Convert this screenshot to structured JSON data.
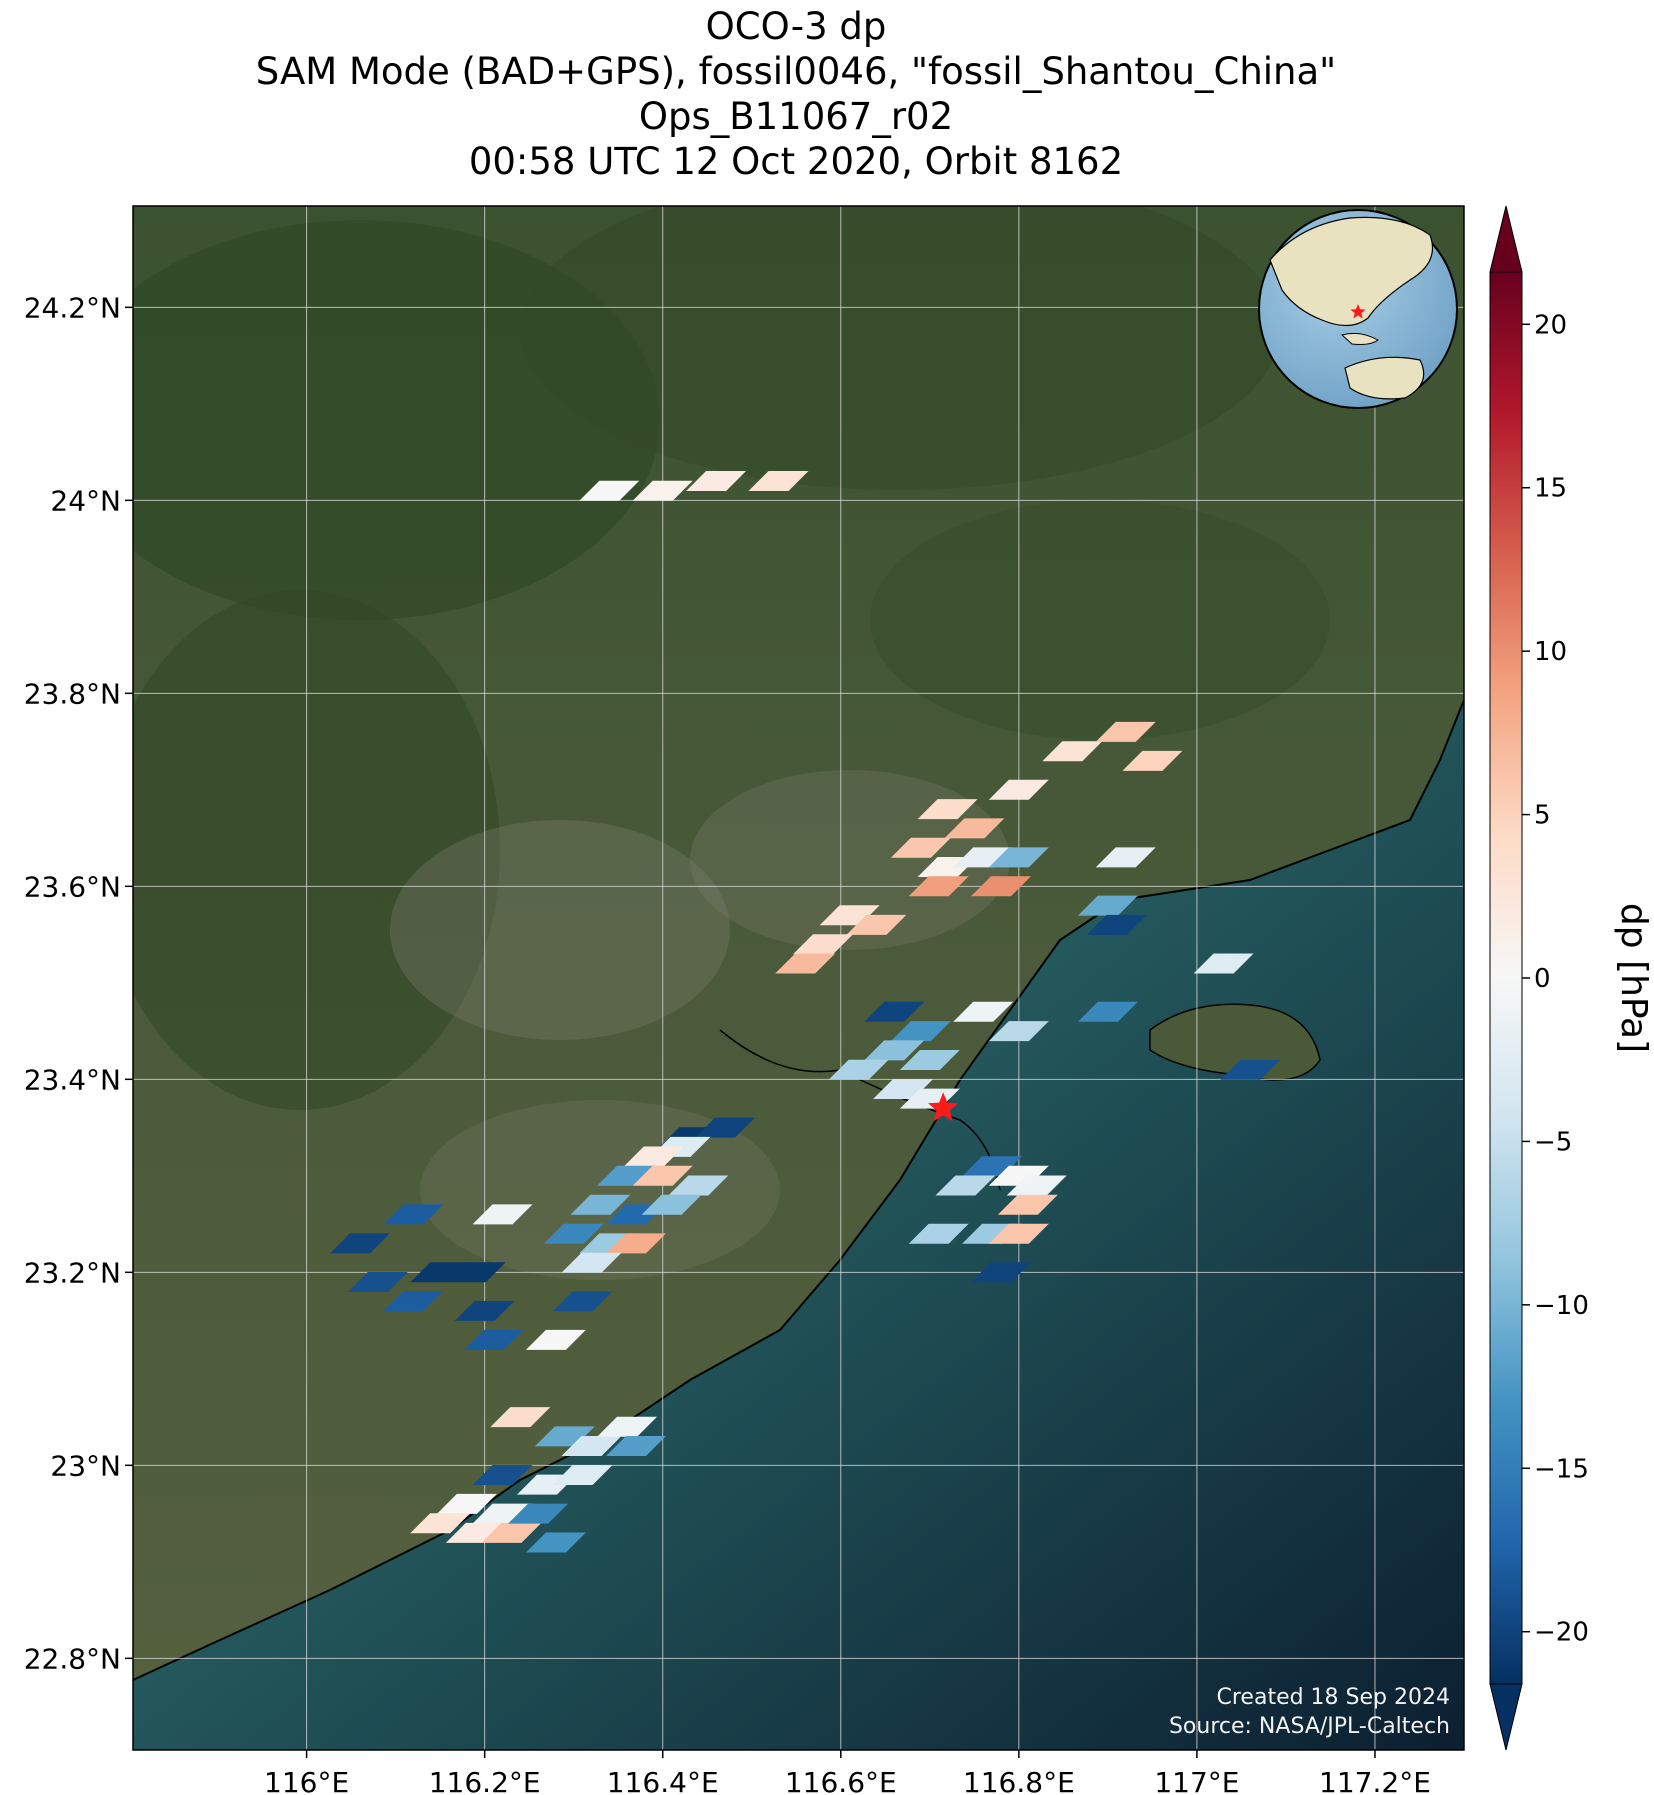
{
  "title_lines": [
    "OCO-3 dp",
    "SAM Mode (BAD+GPS), fossil0046, \"fossil_Shantou_China\"",
    "Ops_B11067_r02",
    "00:58 UTC 12 Oct 2020, Orbit 8162"
  ],
  "map": {
    "lon_range": [
      115.805,
      117.3
    ],
    "lat_range": [
      22.705,
      24.305
    ],
    "lat_ticks": [
      {
        "value": 24.2,
        "label": "24.2°N"
      },
      {
        "value": 24.0,
        "label": "24°N"
      },
      {
        "value": 23.8,
        "label": "23.8°N"
      },
      {
        "value": 23.6,
        "label": "23.6°N"
      },
      {
        "value": 23.4,
        "label": "23.4°N"
      },
      {
        "value": 23.2,
        "label": "23.2°N"
      },
      {
        "value": 23.0,
        "label": "23°N"
      },
      {
        "value": 22.8,
        "label": "22.8°N"
      }
    ],
    "lon_ticks": [
      {
        "value": 116.0,
        "label": "116°E"
      },
      {
        "value": 116.2,
        "label": "116.2°E"
      },
      {
        "value": 116.4,
        "label": "116.4°E"
      },
      {
        "value": 116.6,
        "label": "116.6°E"
      },
      {
        "value": 116.8,
        "label": "116.8°E"
      },
      {
        "value": 117.0,
        "label": "117°E"
      },
      {
        "value": 117.2,
        "label": "117.2°E"
      }
    ],
    "gridlines": true,
    "target": {
      "name": "fossil_Shantou_China",
      "lon": 116.715,
      "lat": 23.37,
      "marker": "red-star"
    },
    "inset_globe": {
      "position": "top-right",
      "marker": "red-star"
    },
    "credits": [
      "Created 18 Sep 2024",
      "Source: NASA/JPL-Caltech"
    ],
    "colors": {
      "land": "#3f5430",
      "sea_near": "#2f6b63",
      "sea_far": "#0e2233",
      "grid": "#d9d9d9",
      "coastline": "#000000",
      "star": "#ff1a1a"
    }
  },
  "colorbar": {
    "label": "dp [hPa]",
    "vmin": -21.6,
    "vmax": 21.6,
    "extend": "both",
    "colormap": "RdBu_r",
    "ticks": [
      -20,
      -15,
      -10,
      -5,
      0,
      5,
      10,
      15,
      20
    ],
    "tick_labels": [
      "−20",
      "−15",
      "−10",
      "−5",
      "0",
      "5",
      "10",
      "15",
      "20"
    ]
  },
  "chart_data": {
    "type": "scatter",
    "description": "OCO-3 SAM footprints, colour = dp in hPa",
    "points": [
      {
        "lon": 116.46,
        "lat": 24.02,
        "dp": 2
      },
      {
        "lon": 116.4,
        "lat": 24.01,
        "dp": 1
      },
      {
        "lon": 116.34,
        "lat": 24.01,
        "dp": 0
      },
      {
        "lon": 116.53,
        "lat": 24.02,
        "dp": 3
      },
      {
        "lon": 116.86,
        "lat": 23.74,
        "dp": 3
      },
      {
        "lon": 116.92,
        "lat": 23.76,
        "dp": 6
      },
      {
        "lon": 116.8,
        "lat": 23.7,
        "dp": 2
      },
      {
        "lon": 116.72,
        "lat": 23.68,
        "dp": 4
      },
      {
        "lon": 116.75,
        "lat": 23.66,
        "dp": 7
      },
      {
        "lon": 116.69,
        "lat": 23.64,
        "dp": 6
      },
      {
        "lon": 116.72,
        "lat": 23.62,
        "dp": 1
      },
      {
        "lon": 116.76,
        "lat": 23.63,
        "dp": -2
      },
      {
        "lon": 116.8,
        "lat": 23.63,
        "dp": -10
      },
      {
        "lon": 116.71,
        "lat": 23.6,
        "dp": 9
      },
      {
        "lon": 116.78,
        "lat": 23.6,
        "dp": 10
      },
      {
        "lon": 116.61,
        "lat": 23.57,
        "dp": 3
      },
      {
        "lon": 116.64,
        "lat": 23.56,
        "dp": 6
      },
      {
        "lon": 116.58,
        "lat": 23.54,
        "dp": 4
      },
      {
        "lon": 116.56,
        "lat": 23.52,
        "dp": 7
      },
      {
        "lon": 116.92,
        "lat": 23.63,
        "dp": -2
      },
      {
        "lon": 116.9,
        "lat": 23.58,
        "dp": -11
      },
      {
        "lon": 116.91,
        "lat": 23.56,
        "dp": -20
      },
      {
        "lon": 116.95,
        "lat": 23.73,
        "dp": 5
      },
      {
        "lon": 117.03,
        "lat": 23.52,
        "dp": -3
      },
      {
        "lon": 116.66,
        "lat": 23.47,
        "dp": -20
      },
      {
        "lon": 116.69,
        "lat": 23.45,
        "dp": -13
      },
      {
        "lon": 116.66,
        "lat": 23.43,
        "dp": -9
      },
      {
        "lon": 116.7,
        "lat": 23.42,
        "dp": -8
      },
      {
        "lon": 116.76,
        "lat": 23.47,
        "dp": -1
      },
      {
        "lon": 116.8,
        "lat": 23.45,
        "dp": -6
      },
      {
        "lon": 116.9,
        "lat": 23.47,
        "dp": -14
      },
      {
        "lon": 116.62,
        "lat": 23.41,
        "dp": -7
      },
      {
        "lon": 116.67,
        "lat": 23.39,
        "dp": -4
      },
      {
        "lon": 116.7,
        "lat": 23.38,
        "dp": -2
      },
      {
        "lon": 117.06,
        "lat": 23.41,
        "dp": -19
      },
      {
        "lon": 116.43,
        "lat": 23.34,
        "dp": -21
      },
      {
        "lon": 116.47,
        "lat": 23.35,
        "dp": -20
      },
      {
        "lon": 116.42,
        "lat": 23.33,
        "dp": -3
      },
      {
        "lon": 116.39,
        "lat": 23.32,
        "dp": 2
      },
      {
        "lon": 116.36,
        "lat": 23.3,
        "dp": -12
      },
      {
        "lon": 116.4,
        "lat": 23.3,
        "dp": 6
      },
      {
        "lon": 116.44,
        "lat": 23.29,
        "dp": -6
      },
      {
        "lon": 116.33,
        "lat": 23.27,
        "dp": -10
      },
      {
        "lon": 116.37,
        "lat": 23.26,
        "dp": -17
      },
      {
        "lon": 116.41,
        "lat": 23.27,
        "dp": -9
      },
      {
        "lon": 116.3,
        "lat": 23.24,
        "dp": -14
      },
      {
        "lon": 116.34,
        "lat": 23.23,
        "dp": -8
      },
      {
        "lon": 116.37,
        "lat": 23.23,
        "dp": 8
      },
      {
        "lon": 116.32,
        "lat": 23.21,
        "dp": -4
      },
      {
        "lon": 116.22,
        "lat": 23.26,
        "dp": -1
      },
      {
        "lon": 116.12,
        "lat": 23.26,
        "dp": -18
      },
      {
        "lon": 116.06,
        "lat": 23.23,
        "dp": -20
      },
      {
        "lon": 116.08,
        "lat": 23.19,
        "dp": -19
      },
      {
        "lon": 116.12,
        "lat": 23.17,
        "dp": -18
      },
      {
        "lon": 116.15,
        "lat": 23.2,
        "dp": -21
      },
      {
        "lon": 116.19,
        "lat": 23.2,
        "dp": -21
      },
      {
        "lon": 116.2,
        "lat": 23.16,
        "dp": -20
      },
      {
        "lon": 116.21,
        "lat": 23.13,
        "dp": -18
      },
      {
        "lon": 116.28,
        "lat": 23.13,
        "dp": 0
      },
      {
        "lon": 116.31,
        "lat": 23.17,
        "dp": -19
      },
      {
        "lon": 116.77,
        "lat": 23.31,
        "dp": -16
      },
      {
        "lon": 116.74,
        "lat": 23.29,
        "dp": -6
      },
      {
        "lon": 116.8,
        "lat": 23.3,
        "dp": 0
      },
      {
        "lon": 116.82,
        "lat": 23.29,
        "dp": -1
      },
      {
        "lon": 116.81,
        "lat": 23.27,
        "dp": 6
      },
      {
        "lon": 116.71,
        "lat": 23.24,
        "dp": -7
      },
      {
        "lon": 116.77,
        "lat": 23.24,
        "dp": -8
      },
      {
        "lon": 116.78,
        "lat": 23.2,
        "dp": -20
      },
      {
        "lon": 116.8,
        "lat": 23.24,
        "dp": 6
      },
      {
        "lon": 116.24,
        "lat": 23.05,
        "dp": 4
      },
      {
        "lon": 116.29,
        "lat": 23.03,
        "dp": -11
      },
      {
        "lon": 116.32,
        "lat": 23.02,
        "dp": -4
      },
      {
        "lon": 116.27,
        "lat": 22.98,
        "dp": -2
      },
      {
        "lon": 116.31,
        "lat": 22.99,
        "dp": -3
      },
      {
        "lon": 116.22,
        "lat": 22.99,
        "dp": -19
      },
      {
        "lon": 116.18,
        "lat": 22.96,
        "dp": 0
      },
      {
        "lon": 116.22,
        "lat": 22.95,
        "dp": -1
      },
      {
        "lon": 116.15,
        "lat": 22.94,
        "dp": 3
      },
      {
        "lon": 116.19,
        "lat": 22.93,
        "dp": 2
      },
      {
        "lon": 116.23,
        "lat": 22.93,
        "dp": 6
      },
      {
        "lon": 116.26,
        "lat": 22.95,
        "dp": -14
      },
      {
        "lon": 116.28,
        "lat": 22.92,
        "dp": -13
      },
      {
        "lon": 116.36,
        "lat": 23.04,
        "dp": -1
      },
      {
        "lon": 116.37,
        "lat": 23.02,
        "dp": -12
      }
    ]
  }
}
